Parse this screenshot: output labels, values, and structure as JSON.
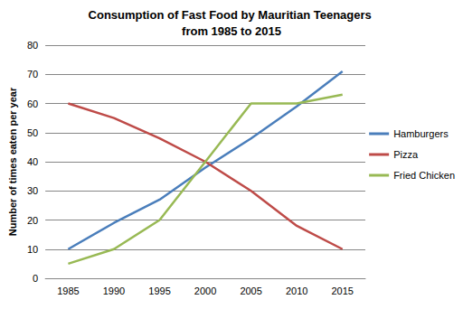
{
  "chart_data": {
    "type": "line",
    "title": "Consumption of Fast Food by Mauritian Teenagers from 1985 to 2015",
    "y_label": "Number of times eaten per year",
    "categories": [
      "1985",
      "1990",
      "1995",
      "2000",
      "2005",
      "2010",
      "2015"
    ],
    "series": [
      {
        "name": "Hamburgers",
        "color": "#4a7ebb",
        "values": [
          10,
          19,
          27,
          38,
          48,
          59,
          71
        ]
      },
      {
        "name": "Pizza",
        "color": "#be4b48",
        "values": [
          60,
          55,
          48,
          40,
          30,
          18,
          10
        ]
      },
      {
        "name": "Fried Chicken",
        "color": "#98b954",
        "values": [
          5,
          10,
          20,
          40,
          60,
          60,
          63
        ]
      }
    ],
    "ylim": [
      0,
      80
    ],
    "yticks": [
      0,
      10,
      20,
      30,
      40,
      50,
      60,
      70,
      80
    ],
    "grid": true,
    "legend": "right",
    "marker": "none"
  }
}
